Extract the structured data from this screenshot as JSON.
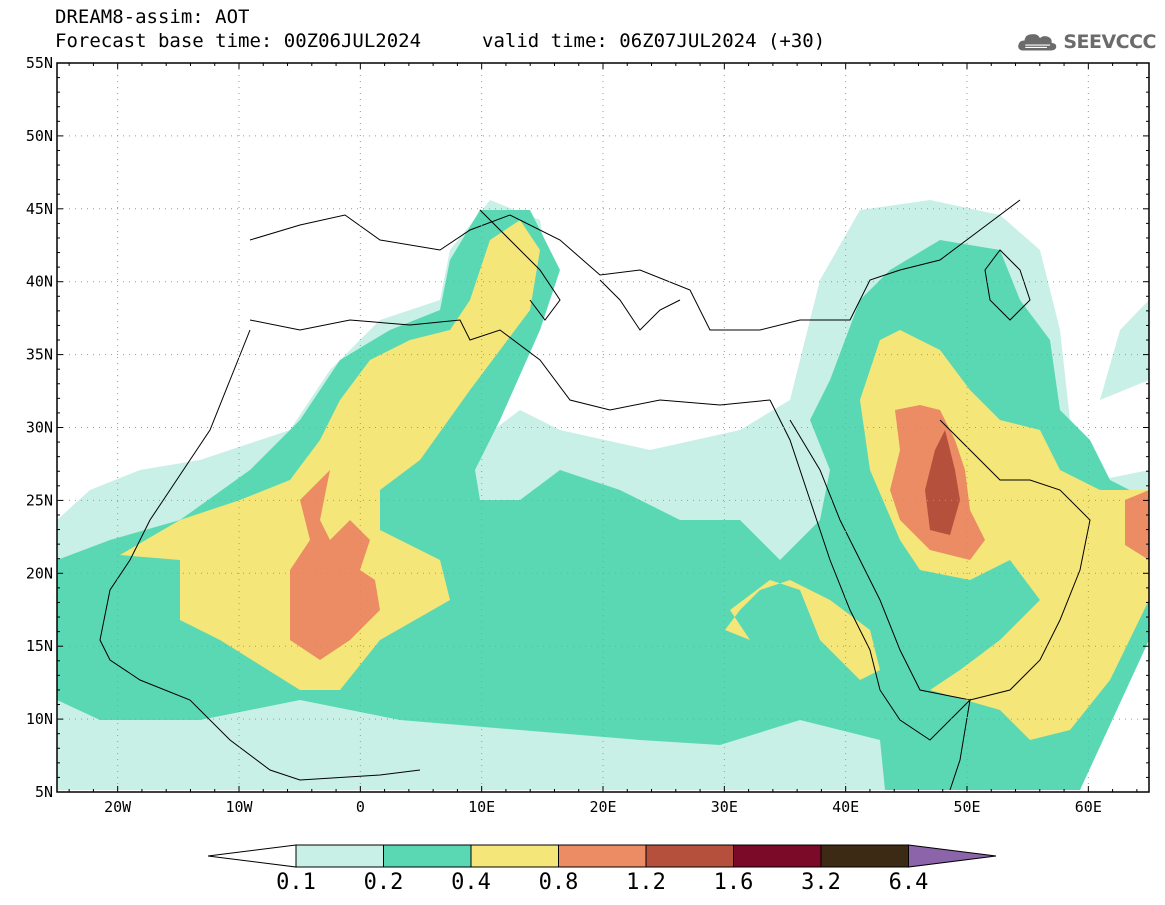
{
  "header": {
    "title_line1": "DREAM8-assim: AOT",
    "title_line2": "Forecast base time: 00Z06JUL2024",
    "valid_time": "valid time: 06Z07JUL2024 (+30)"
  },
  "logo": {
    "text": "SEEVCCC",
    "icon": "cloud-icon"
  },
  "map": {
    "lat_labels": [
      "55N",
      "50N",
      "45N",
      "40N",
      "35N",
      "30N",
      "25N",
      "20N",
      "15N",
      "10N",
      "5N"
    ],
    "lon_labels": [
      "20W",
      "10W",
      "0",
      "10E",
      "20E",
      "30E",
      "40E",
      "50E",
      "60E"
    ],
    "lon_range": [
      -25,
      65
    ],
    "lat_range": [
      5,
      55
    ]
  },
  "colorbar": {
    "levels": [
      "0.1",
      "0.2",
      "0.4",
      "0.8",
      "1.2",
      "1.6",
      "3.2",
      "6.4"
    ],
    "colors": [
      "#c8f0e6",
      "#5ad8b4",
      "#f5e67a",
      "#eb8c64",
      "#b4503c",
      "#7a0a28",
      "#3c2a14",
      "#8c64aa"
    ],
    "below_color": "#ffffff"
  }
}
